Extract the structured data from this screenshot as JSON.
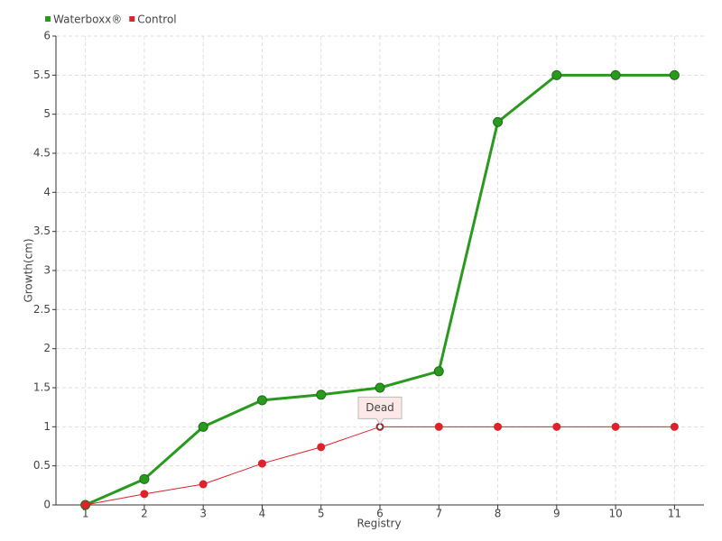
{
  "chart_data": {
    "type": "line",
    "categories": [
      "1",
      "2",
      "3",
      "4",
      "5",
      "6",
      "7",
      "8",
      "9",
      "10",
      "11"
    ],
    "series": [
      {
        "name": "Waterboxx®",
        "color": "#2a9a1e",
        "values": [
          0,
          0.33,
          1.0,
          1.34,
          1.41,
          1.5,
          1.71,
          4.9,
          5.5,
          5.5,
          5.5
        ]
      },
      {
        "name": "Control",
        "color": "#e0202a",
        "values": [
          0,
          0.14,
          0.265,
          0.53,
          0.74,
          1.0,
          1.0,
          1.0,
          1.0,
          1.0,
          1.0
        ]
      }
    ],
    "ylim": [
      0,
      6
    ],
    "yticks": [
      0,
      0.5,
      1,
      1.5,
      2,
      2.5,
      3,
      3.5,
      4,
      4.5,
      5,
      5.5,
      6
    ],
    "xlabel": "Registry",
    "ylabel": "Growth(cm)",
    "grid": true,
    "legend": "top-left",
    "annotations": [
      {
        "text": "Dead",
        "x": "6",
        "y": 1
      }
    ]
  }
}
